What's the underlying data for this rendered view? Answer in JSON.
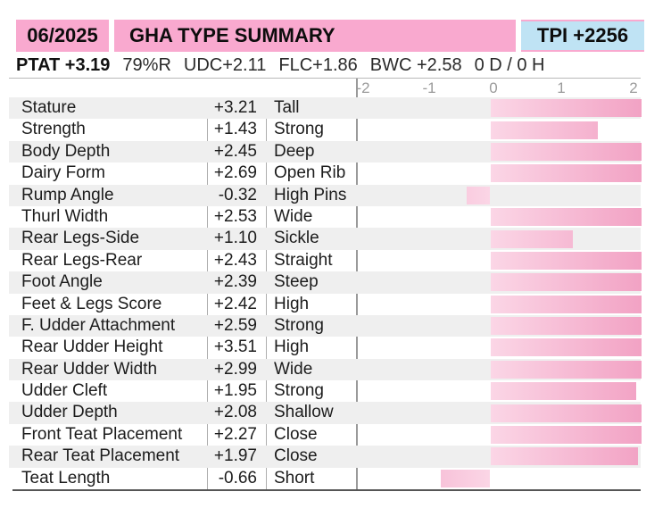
{
  "header": {
    "date": "06/2025",
    "title": "GHA TYPE SUMMARY",
    "tpi": "TPI +2256"
  },
  "stats": {
    "items": [
      {
        "text": "PTAT +3.19",
        "bold": true
      },
      {
        "text": "79%R",
        "bold": false
      },
      {
        "text": "UDC+2.11",
        "bold": false
      },
      {
        "text": "FLC+1.86",
        "bold": false
      },
      {
        "text": "BWC +2.58",
        "bold": false
      },
      {
        "text": "0 D /  0 H",
        "bold": false
      }
    ]
  },
  "colors": {
    "header_pink": "#f9a9cf",
    "tpi_blue": "#bfe3f4",
    "row_alt_gray": "#efefef",
    "bar_light": "#fbd6e6",
    "bar_dark": "#f2a2c4",
    "axis_text": "#9b9b9b"
  },
  "chart_data": {
    "type": "bar",
    "orientation": "horizontal",
    "title": "GHA TYPE SUMMARY",
    "xlim": [
      -2,
      2
    ],
    "axis_ticks": [
      "-2",
      "-1",
      "0",
      "1",
      "2"
    ],
    "grid": false,
    "legend": "none",
    "note": "bars extend from 0 toward value, clipped at chart edges",
    "rows": [
      {
        "trait": "Stature",
        "value": "+3.21",
        "num": 3.21,
        "descriptor": "Tall"
      },
      {
        "trait": "Strength",
        "value": "+1.43",
        "num": 1.43,
        "descriptor": "Strong"
      },
      {
        "trait": "Body Depth",
        "value": "+2.45",
        "num": 2.45,
        "descriptor": "Deep"
      },
      {
        "trait": "Dairy Form",
        "value": "+2.69",
        "num": 2.69,
        "descriptor": "Open Rib"
      },
      {
        "trait": "Rump Angle",
        "value": "-0.32",
        "num": -0.32,
        "descriptor": "High Pins"
      },
      {
        "trait": "Thurl Width",
        "value": "+2.53",
        "num": 2.53,
        "descriptor": "Wide"
      },
      {
        "trait": "Rear Legs-Side",
        "value": "+1.10",
        "num": 1.1,
        "descriptor": "Sickle"
      },
      {
        "trait": "Rear Legs-Rear",
        "value": "+2.43",
        "num": 2.43,
        "descriptor": "Straight"
      },
      {
        "trait": "Foot Angle",
        "value": "+2.39",
        "num": 2.39,
        "descriptor": "Steep"
      },
      {
        "trait": "Feet & Legs Score",
        "value": "+2.42",
        "num": 2.42,
        "descriptor": "High"
      },
      {
        "trait": "F. Udder Attachment",
        "value": "+2.59",
        "num": 2.59,
        "descriptor": "Strong"
      },
      {
        "trait": "Rear Udder Height",
        "value": "+3.51",
        "num": 3.51,
        "descriptor": "High"
      },
      {
        "trait": "Rear Udder Width",
        "value": "+2.99",
        "num": 2.99,
        "descriptor": "Wide"
      },
      {
        "trait": "Udder Cleft",
        "value": "+1.95",
        "num": 1.95,
        "descriptor": "Strong"
      },
      {
        "trait": "Udder Depth",
        "value": "+2.08",
        "num": 2.08,
        "descriptor": "Shallow"
      },
      {
        "trait": "Front Teat Placement",
        "value": "+2.27",
        "num": 2.27,
        "descriptor": "Close"
      },
      {
        "trait": "Rear Teat Placement",
        "value": "+1.97",
        "num": 1.97,
        "descriptor": "Close"
      },
      {
        "trait": "Teat Length",
        "value": "-0.66",
        "num": -0.66,
        "descriptor": "Short"
      }
    ]
  }
}
